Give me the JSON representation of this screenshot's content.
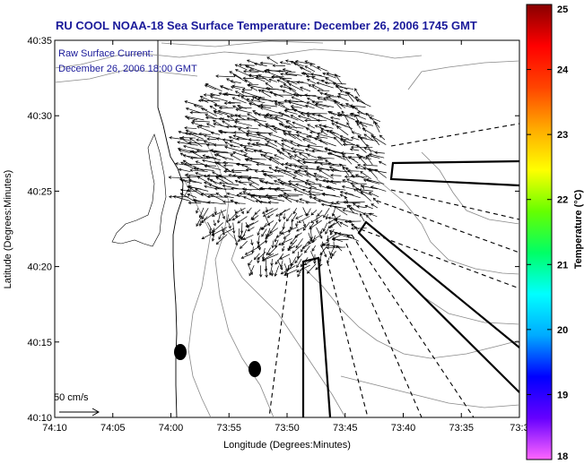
{
  "chart_data": {
    "type": "map",
    "title": "RU COOL  NOAA-18  Sea Surface Temperature:  December 26, 2006 1745 GMT",
    "annotation": [
      "Raw Surface Current:",
      "December 26, 2006 18:00 GMT"
    ],
    "xlabel": "Longitude (Degrees:Minutes)",
    "ylabel": "Latitude (Degrees:Minutes)",
    "x_ticks": [
      "74:10",
      "74:05",
      "74:00",
      "73:55",
      "73:50",
      "73:45",
      "73:40",
      "73:35",
      "73:3"
    ],
    "y_ticks": [
      "40:35",
      "40:30",
      "40:25",
      "40:20",
      "40:15",
      "40:10"
    ],
    "colorbar": {
      "label": "Temperature (°C)",
      "min": 18,
      "max": 25,
      "ticks": [
        "25",
        "24",
        "23",
        "22",
        "21",
        "20",
        "19",
        "18"
      ],
      "colors": [
        "#ff66ff",
        "#6600ff",
        "#0000ff",
        "#00aaff",
        "#00ffff",
        "#00ff66",
        "#66ff00",
        "#ffff00",
        "#ffaa00",
        "#ff4400",
        "#ff0000",
        "#880000"
      ]
    },
    "scale_label": "50 cm/s",
    "field_color": "#ffffff",
    "land_color": "#ffffff"
  }
}
